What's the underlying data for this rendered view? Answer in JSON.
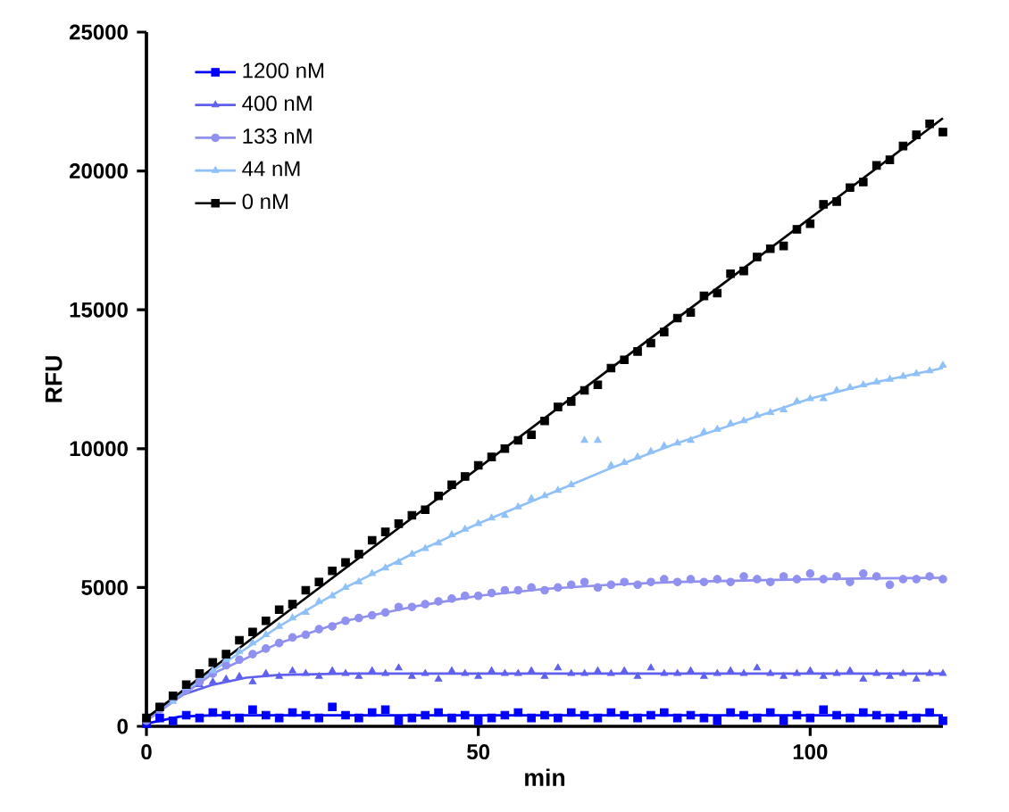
{
  "chart_data": {
    "type": "scatter",
    "xlabel": "min",
    "ylabel": "RFU",
    "xlim": [
      0,
      120
    ],
    "xticks": [
      0,
      50,
      100
    ],
    "ylim": [
      0,
      25000
    ],
    "yticks": [
      0,
      5000,
      10000,
      15000,
      20000,
      25000
    ],
    "grid": false,
    "legend": "top left",
    "x": [
      0,
      2,
      4,
      6,
      8,
      10,
      12,
      14,
      16,
      18,
      20,
      22,
      24,
      26,
      28,
      30,
      32,
      34,
      36,
      38,
      40,
      42,
      44,
      46,
      48,
      50,
      52,
      54,
      56,
      58,
      60,
      62,
      64,
      66,
      68,
      70,
      72,
      74,
      76,
      78,
      80,
      82,
      84,
      86,
      88,
      90,
      92,
      94,
      96,
      98,
      100,
      102,
      104,
      106,
      108,
      110,
      112,
      114,
      116,
      118,
      120
    ],
    "series": [
      {
        "name": "1200 nM",
        "color": "#0000ff",
        "marker": "square",
        "values": [
          100,
          300,
          200,
          400,
          300,
          500,
          400,
          300,
          600,
          400,
          300,
          500,
          400,
          300,
          700,
          400,
          300,
          500,
          600,
          200,
          300,
          400,
          500,
          300,
          400,
          200,
          300,
          400,
          500,
          300,
          400,
          300,
          500,
          400,
          300,
          500,
          400,
          300,
          400,
          500,
          300,
          400,
          300,
          200,
          500,
          400,
          300,
          500,
          200,
          400,
          300,
          600,
          400,
          300,
          500,
          400,
          300,
          400,
          300,
          500,
          200
        ]
      },
      {
        "name": "400 nM",
        "color": "#6060ee",
        "marker": "triangle",
        "values": [
          200,
          700,
          1000,
          1300,
          1500,
          1600,
          1700,
          1800,
          1600,
          1900,
          1800,
          2000,
          1900,
          1800,
          2000,
          1900,
          1800,
          2000,
          1900,
          2100,
          1800,
          1900,
          1700,
          2000,
          1900,
          1800,
          2000,
          1900,
          1900,
          2000,
          1800,
          2100,
          1900,
          1900,
          2000,
          1900,
          2000,
          1800,
          2100,
          1900,
          1900,
          2000,
          1800,
          1900,
          2000,
          1900,
          2100,
          1900,
          1800,
          1900,
          2000,
          1800,
          1900,
          2000,
          1700,
          1900,
          1800,
          1900,
          1700,
          1900,
          1900
        ]
      },
      {
        "name": "133 nM",
        "color": "#9090f0",
        "marker": "circle",
        "values": [
          200,
          600,
          1000,
          1300,
          1600,
          1900,
          2200,
          2400,
          2600,
          2800,
          3000,
          3200,
          3300,
          3500,
          3600,
          3800,
          3900,
          4000,
          4100,
          4300,
          4300,
          4400,
          4500,
          4600,
          4700,
          4700,
          4800,
          4900,
          4900,
          5000,
          4900,
          5000,
          5100,
          5200,
          5000,
          5100,
          5200,
          5100,
          5200,
          5300,
          5200,
          5300,
          5200,
          5300,
          5200,
          5400,
          5300,
          5200,
          5400,
          5300,
          5500,
          5300,
          5400,
          5200,
          5500,
          5400,
          5100,
          5300,
          5300,
          5400,
          5300
        ]
      },
      {
        "name": "44 nM",
        "color": "#90c0f8",
        "marker": "triangle",
        "values": [
          300,
          700,
          900,
          1400,
          1800,
          2000,
          2400,
          2700,
          3000,
          3300,
          3600,
          3900,
          4100,
          4500,
          4700,
          5000,
          5200,
          5500,
          5700,
          5900,
          6200,
          6400,
          6600,
          6900,
          7100,
          7300,
          7500,
          7600,
          7900,
          8200,
          8300,
          8500,
          8700,
          10300,
          10300,
          9400,
          9500,
          9700,
          9900,
          10100,
          10200,
          10300,
          10600,
          10700,
          10900,
          11000,
          11200,
          11300,
          11400,
          11700,
          11800,
          11800,
          12100,
          12200,
          12300,
          12400,
          12500,
          12600,
          12700,
          12800,
          13000
        ]
      },
      {
        "name": "0 nM",
        "color": "#000000",
        "marker": "square",
        "values": [
          300,
          700,
          1100,
          1500,
          1900,
          2300,
          2600,
          3100,
          3400,
          3800,
          4200,
          4400,
          4900,
          5200,
          5600,
          5900,
          6200,
          6700,
          7000,
          7300,
          7600,
          7800,
          8300,
          8700,
          9000,
          9400,
          9700,
          10000,
          10300,
          10500,
          11000,
          11500,
          11700,
          12100,
          12300,
          12900,
          13200,
          13500,
          13800,
          14200,
          14700,
          14900,
          15500,
          15600,
          16300,
          16400,
          16900,
          17200,
          17300,
          17900,
          18100,
          18800,
          18900,
          19400,
          19600,
          20200,
          20400,
          20900,
          21300,
          21700,
          21400
        ]
      },
      {
        "type": "line",
        "color": "#0000ff",
        "x": [
          0,
          5,
          10,
          20,
          40,
          60,
          80,
          100,
          120
        ],
        "values": [
          100,
          350,
          400,
          400,
          400,
          400,
          400,
          400,
          400
        ]
      },
      {
        "type": "line",
        "color": "#6060ee",
        "x": [
          0,
          5,
          10,
          15,
          20,
          30,
          40,
          60,
          80,
          100,
          120
        ],
        "values": [
          200,
          1100,
          1500,
          1750,
          1850,
          1900,
          1900,
          1900,
          1900,
          1900,
          1900
        ]
      },
      {
        "type": "line",
        "color": "#9090f0",
        "x": [
          0,
          10,
          20,
          30,
          40,
          50,
          60,
          70,
          80,
          90,
          100,
          110,
          120
        ],
        "values": [
          200,
          1900,
          3000,
          3800,
          4300,
          4700,
          4950,
          5100,
          5200,
          5250,
          5300,
          5330,
          5350
        ]
      },
      {
        "type": "line",
        "color": "#90c0f8",
        "x": [
          0,
          10,
          20,
          30,
          40,
          50,
          60,
          70,
          80,
          90,
          100,
          110,
          120
        ],
        "values": [
          300,
          2000,
          3600,
          5000,
          6200,
          7300,
          8300,
          9300,
          10200,
          11000,
          11800,
          12400,
          12900
        ]
      },
      {
        "type": "line",
        "color": "#000000",
        "x": [
          0,
          120
        ],
        "values": [
          300,
          21900
        ]
      }
    ]
  }
}
